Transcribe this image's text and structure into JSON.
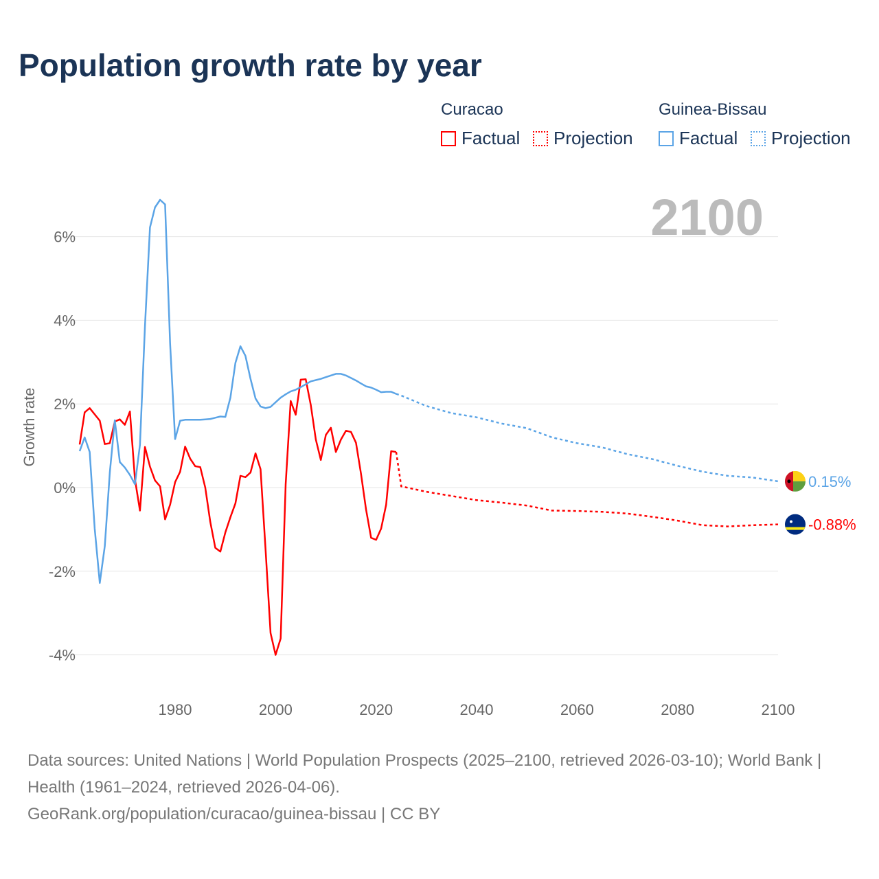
{
  "title": "Population growth rate by year",
  "legend": {
    "groups": [
      {
        "name": "Curacao",
        "factual": "Factual",
        "projection": "Projection",
        "color": "#ff0000"
      },
      {
        "name": "Guinea-Bissau",
        "factual": "Factual",
        "projection": "Projection",
        "color": "#5ba4e6"
      }
    ]
  },
  "year_overlay": "2100",
  "source": {
    "line1": "Data sources: United Nations | World Population Prospects (2025–2100, retrieved 2026-03-10); World Bank | Health (1961–2024, retrieved 2026-04-06).",
    "line2": "GeoRank.org/population/curacao/guinea-bissau | CC BY"
  },
  "chart_data": {
    "type": "line",
    "title": "Population growth rate by year",
    "xlabel": "",
    "ylabel": "Growth rate",
    "xlim": [
      1961,
      2100
    ],
    "ylim": [
      -4.8,
      7.2
    ],
    "xticks": [
      1980,
      2000,
      2020,
      2040,
      2060,
      2080,
      2100
    ],
    "xtick_labels": [
      "1980",
      "2000",
      "2020",
      "2040",
      "2060",
      "2080",
      "2100"
    ],
    "yticks": [
      -4,
      -2,
      0,
      2,
      4,
      6
    ],
    "ytick_labels": [
      "-4%",
      "-2%",
      "0%",
      "2%",
      "4%",
      "6%"
    ],
    "grid": true,
    "series": [
      {
        "name": "Curacao",
        "color": "#ff0000",
        "end_label": "-0.88%",
        "factual": {
          "start": 1961,
          "values": [
            1.03,
            1.8,
            1.9,
            1.75,
            1.6,
            1.04,
            1.06,
            1.58,
            1.63,
            1.5,
            1.82,
            0.2,
            -0.55,
            0.97,
            0.5,
            0.17,
            0.03,
            -0.76,
            -0.41,
            0.13,
            0.38,
            0.98,
            0.69,
            0.51,
            0.49,
            0,
            -0.82,
            -1.44,
            -1.53,
            -1.07,
            -0.71,
            -0.38,
            0.28,
            0.25,
            0.36,
            0.82,
            0.44,
            -1.48,
            -3.48,
            -4.0,
            -3.61,
            0.08,
            2.07,
            1.74,
            2.58,
            2.59,
            1.97,
            1.15,
            0.66,
            1.26,
            1.43,
            0.85,
            1.15,
            1.36,
            1.33,
            1.07,
            0.33,
            -0.52,
            -1.2,
            -1.25,
            -0.98,
            -0.41,
            0.87,
            0.85
          ]
        },
        "projection": {
          "x": [
            2024,
            2025,
            2030,
            2035,
            2040,
            2045,
            2050,
            2055,
            2060,
            2065,
            2070,
            2075,
            2080,
            2085,
            2090,
            2095,
            2100
          ],
          "values": [
            0.85,
            0.03,
            -0.1,
            -0.2,
            -0.3,
            -0.36,
            -0.43,
            -0.55,
            -0.56,
            -0.58,
            -0.62,
            -0.7,
            -0.79,
            -0.9,
            -0.93,
            -0.9,
            -0.88
          ]
        }
      },
      {
        "name": "Guinea-Bissau",
        "color": "#5ba4e6",
        "end_label": "0.15%",
        "factual": {
          "start": 1961,
          "values": [
            0.87,
            1.2,
            0.85,
            -0.98,
            -2.28,
            -1.4,
            0.36,
            1.61,
            0.61,
            0.48,
            0.3,
            0.08,
            1.02,
            3.86,
            6.22,
            6.7,
            6.88,
            6.77,
            3.45,
            1.16,
            1.6,
            1.62,
            1.62,
            1.62,
            1.62,
            1.63,
            1.64,
            1.67,
            1.7,
            1.69,
            2.15,
            2.98,
            3.38,
            3.15,
            2.6,
            2.13,
            1.94,
            1.9,
            1.93,
            2.04,
            2.15,
            2.23,
            2.3,
            2.34,
            2.4,
            2.47,
            2.54,
            2.57,
            2.6,
            2.64,
            2.68,
            2.72,
            2.72,
            2.68,
            2.62,
            2.56,
            2.49,
            2.42,
            2.39,
            2.34,
            2.28,
            2.29,
            2.29,
            2.24
          ]
        },
        "projection": {
          "x": [
            2024,
            2025,
            2030,
            2035,
            2040,
            2045,
            2050,
            2055,
            2060,
            2065,
            2070,
            2075,
            2080,
            2085,
            2090,
            2095,
            2100
          ],
          "values": [
            2.24,
            2.2,
            1.95,
            1.78,
            1.68,
            1.53,
            1.42,
            1.2,
            1.06,
            0.96,
            0.8,
            0.68,
            0.52,
            0.38,
            0.28,
            0.24,
            0.15
          ]
        }
      }
    ]
  }
}
